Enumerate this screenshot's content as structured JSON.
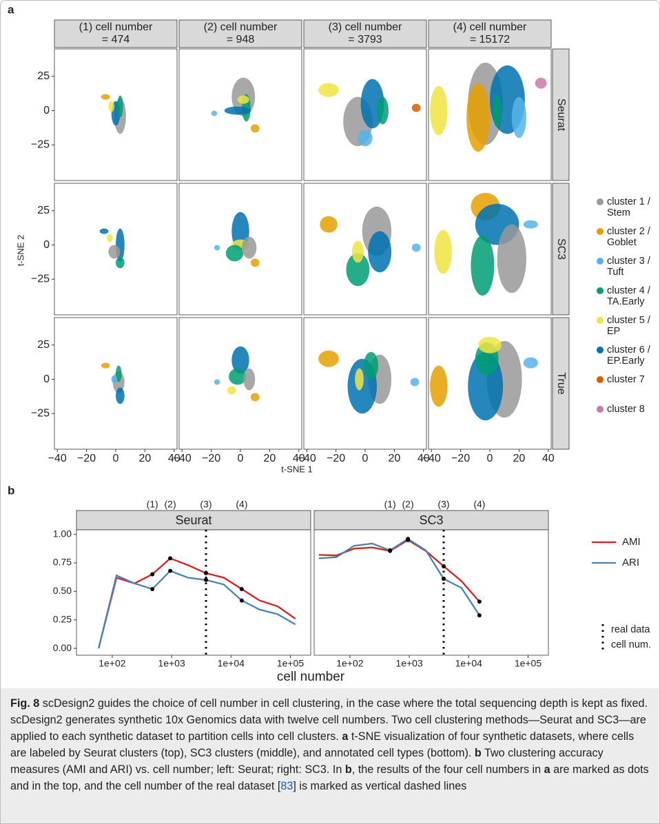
{
  "chart_data": [
    {
      "type": "scatter",
      "panel_label": "a",
      "xlabel": "t-SNE 1",
      "ylabel": "t-SNE 2",
      "xlim": [
        -42,
        42
      ],
      "ylim": [
        -51,
        45
      ],
      "xticks": [
        {
          "value": -40,
          "label": "−40"
        },
        {
          "value": -20,
          "label": "−20"
        },
        0,
        20,
        40
      ],
      "yticks": [
        25,
        0,
        {
          "value": -25,
          "label": "−25"
        }
      ],
      "columns": [
        [
          "(1) cell number",
          "= 474"
        ],
        [
          "(2) cell number",
          "= 948"
        ],
        [
          "(3) cell number",
          "= 3793"
        ],
        [
          "(4) cell number",
          "= 15172"
        ]
      ],
      "rows": [
        "Seurat",
        "SC3",
        "True"
      ],
      "clusters": [
        {
          "name": [
            "cluster 1 /",
            "Stem"
          ],
          "color": "#999999"
        },
        {
          "name": [
            "cluster 2 /",
            "Goblet"
          ],
          "color": "#E69F00"
        },
        {
          "name": [
            "cluster 3 /",
            "Tuft"
          ],
          "color": "#56B4E9"
        },
        {
          "name": [
            "cluster 4 /",
            "TA.Early"
          ],
          "color": "#009E73"
        },
        {
          "name": [
            "cluster 5 /",
            "EP"
          ],
          "color": "#F0E442"
        },
        {
          "name": [
            "cluster 6 /",
            "EP.Early"
          ],
          "color": "#0072B2"
        },
        {
          "name": [
            "cluster 7"
          ],
          "color": "#D55E00"
        },
        {
          "name": [
            "cluster 8"
          ],
          "color": "#CC79A7"
        }
      ],
      "panels": [
        [
          [
            {
              "cluster": 0,
              "x": 3,
              "y": -4,
              "rx": 4,
              "ry": 13
            },
            {
              "cluster": 5,
              "x": 0,
              "y": -2,
              "rx": 3,
              "ry": 9
            },
            {
              "cluster": 3,
              "x": 3,
              "y": 3,
              "rx": 2,
              "ry": 8
            },
            {
              "cluster": 4,
              "x": -3,
              "y": 3,
              "rx": 2,
              "ry": 4
            },
            {
              "cluster": 1,
              "x": -7,
              "y": 10,
              "rx": 3,
              "ry": 2
            }
          ],
          [
            {
              "cluster": 0,
              "x": 2,
              "y": 10,
              "rx": 8,
              "ry": 14
            },
            {
              "cluster": 3,
              "x": 4,
              "y": 2,
              "rx": 3,
              "ry": 10
            },
            {
              "cluster": 5,
              "x": -2,
              "y": 0,
              "rx": 9,
              "ry": 3
            },
            {
              "cluster": 4,
              "x": 2,
              "y": 8,
              "rx": 4,
              "ry": 3
            },
            {
              "cluster": 1,
              "x": 10,
              "y": -13,
              "rx": 3,
              "ry": 3
            },
            {
              "cluster": 2,
              "x": -18,
              "y": -2,
              "rx": 2,
              "ry": 2
            }
          ],
          [
            {
              "cluster": 0,
              "x": -5,
              "y": -8,
              "rx": 10,
              "ry": 18
            },
            {
              "cluster": 5,
              "x": 5,
              "y": 5,
              "rx": 8,
              "ry": 18
            },
            {
              "cluster": 3,
              "x": 12,
              "y": 0,
              "rx": 4,
              "ry": 10
            },
            {
              "cluster": 4,
              "x": -25,
              "y": 15,
              "rx": 7,
              "ry": 5
            },
            {
              "cluster": 6,
              "x": 35,
              "y": 2,
              "rx": 3,
              "ry": 3
            },
            {
              "cluster": 2,
              "x": 0,
              "y": -20,
              "rx": 5,
              "ry": 6
            }
          ],
          [
            {
              "cluster": 0,
              "x": -3,
              "y": 5,
              "rx": 12,
              "ry": 30
            },
            {
              "cluster": 1,
              "x": -8,
              "y": -5,
              "rx": 8,
              "ry": 25
            },
            {
              "cluster": 5,
              "x": 12,
              "y": 8,
              "rx": 12,
              "ry": 25
            },
            {
              "cluster": 2,
              "x": 20,
              "y": -5,
              "rx": 5,
              "ry": 15
            },
            {
              "cluster": 4,
              "x": -35,
              "y": 0,
              "rx": 6,
              "ry": 18
            },
            {
              "cluster": 7,
              "x": 35,
              "y": 20,
              "rx": 4,
              "ry": 4
            },
            {
              "cluster": 3,
              "x": 5,
              "y": 0,
              "rx": 3,
              "ry": 12
            }
          ]
        ],
        [
          [
            {
              "cluster": 5,
              "x": 3,
              "y": 0,
              "rx": 3,
              "ry": 12
            },
            {
              "cluster": 0,
              "x": -1,
              "y": -5,
              "rx": 4,
              "ry": 5
            },
            {
              "cluster": 3,
              "x": 3,
              "y": -13,
              "rx": 3,
              "ry": 4
            },
            {
              "cluster": 4,
              "x": -4,
              "y": 5,
              "rx": 2,
              "ry": 3
            },
            {
              "cluster": 5,
              "x": -8,
              "y": 10,
              "rx": 3,
              "ry": 2
            }
          ],
          [
            {
              "cluster": 5,
              "x": 0,
              "y": 10,
              "rx": 6,
              "ry": 14
            },
            {
              "cluster": 4,
              "x": 0,
              "y": 0,
              "rx": 6,
              "ry": 4
            },
            {
              "cluster": 3,
              "x": -4,
              "y": -6,
              "rx": 6,
              "ry": 6
            },
            {
              "cluster": 0,
              "x": 6,
              "y": -2,
              "rx": 5,
              "ry": 8
            },
            {
              "cluster": 1,
              "x": 10,
              "y": -13,
              "rx": 3,
              "ry": 3
            },
            {
              "cluster": 2,
              "x": -16,
              "y": -2,
              "rx": 2,
              "ry": 2
            }
          ],
          [
            {
              "cluster": 1,
              "x": -25,
              "y": 15,
              "rx": 6,
              "ry": 6
            },
            {
              "cluster": 0,
              "x": 8,
              "y": 10,
              "rx": 10,
              "ry": 18
            },
            {
              "cluster": 5,
              "x": 10,
              "y": -5,
              "rx": 8,
              "ry": 15
            },
            {
              "cluster": 3,
              "x": -5,
              "y": -18,
              "rx": 8,
              "ry": 12
            },
            {
              "cluster": 4,
              "x": -5,
              "y": -5,
              "rx": 4,
              "ry": 8
            },
            {
              "cluster": 2,
              "x": 35,
              "y": -2,
              "rx": 3,
              "ry": 3
            }
          ],
          [
            {
              "cluster": 1,
              "x": -3,
              "y": 28,
              "rx": 10,
              "ry": 10
            },
            {
              "cluster": 5,
              "x": 5,
              "y": 15,
              "rx": 15,
              "ry": 15
            },
            {
              "cluster": 0,
              "x": 15,
              "y": -10,
              "rx": 10,
              "ry": 25
            },
            {
              "cluster": 3,
              "x": -5,
              "y": -15,
              "rx": 8,
              "ry": 22
            },
            {
              "cluster": 4,
              "x": -32,
              "y": -5,
              "rx": 6,
              "ry": 16
            },
            {
              "cluster": 2,
              "x": 28,
              "y": 15,
              "rx": 5,
              "ry": 3
            }
          ]
        ],
        [
          [
            {
              "cluster": 0,
              "x": 2,
              "y": -2,
              "rx": 4,
              "ry": 8
            },
            {
              "cluster": 5,
              "x": 3,
              "y": -12,
              "rx": 3,
              "ry": 6
            },
            {
              "cluster": 3,
              "x": 2,
              "y": 4,
              "rx": 2,
              "ry": 6
            },
            {
              "cluster": 1,
              "x": -7,
              "y": 10,
              "rx": 3,
              "ry": 2
            },
            {
              "cluster": 2,
              "x": -1,
              "y": 0,
              "rx": 2,
              "ry": 3
            }
          ],
          [
            {
              "cluster": 5,
              "x": 0,
              "y": 14,
              "rx": 6,
              "ry": 10
            },
            {
              "cluster": 3,
              "x": -2,
              "y": 2,
              "rx": 6,
              "ry": 6
            },
            {
              "cluster": 0,
              "x": 6,
              "y": 0,
              "rx": 4,
              "ry": 8
            },
            {
              "cluster": 4,
              "x": -6,
              "y": -8,
              "rx": 3,
              "ry": 3
            },
            {
              "cluster": 1,
              "x": 10,
              "y": -13,
              "rx": 3,
              "ry": 3
            },
            {
              "cluster": 2,
              "x": -16,
              "y": -2,
              "rx": 2,
              "ry": 2
            }
          ],
          [
            {
              "cluster": 1,
              "x": -25,
              "y": 15,
              "rx": 7,
              "ry": 6
            },
            {
              "cluster": 0,
              "x": 10,
              "y": 0,
              "rx": 8,
              "ry": 18
            },
            {
              "cluster": 5,
              "x": -2,
              "y": -5,
              "rx": 10,
              "ry": 20
            },
            {
              "cluster": 3,
              "x": 4,
              "y": 10,
              "rx": 5,
              "ry": 10
            },
            {
              "cluster": 4,
              "x": -4,
              "y": 0,
              "rx": 3,
              "ry": 8
            },
            {
              "cluster": 2,
              "x": 34,
              "y": -2,
              "rx": 3,
              "ry": 3
            }
          ],
          [
            {
              "cluster": 1,
              "x": -35,
              "y": -5,
              "rx": 6,
              "ry": 15
            },
            {
              "cluster": 0,
              "x": 10,
              "y": 0,
              "rx": 12,
              "ry": 28
            },
            {
              "cluster": 5,
              "x": -3,
              "y": -5,
              "rx": 12,
              "ry": 25
            },
            {
              "cluster": 3,
              "x": -2,
              "y": 15,
              "rx": 8,
              "ry": 12
            },
            {
              "cluster": 4,
              "x": 0,
              "y": 25,
              "rx": 8,
              "ry": 6
            },
            {
              "cluster": 2,
              "x": 28,
              "y": 12,
              "rx": 5,
              "ry": 4
            }
          ]
        ]
      ]
    },
    {
      "type": "line",
      "panel_label": "b",
      "xlabel": "cell number",
      "log_x": true,
      "xlim": [
        25,
        220000
      ],
      "ylim": [
        -0.06,
        1.04
      ],
      "xticks": [
        {
          "value": 100,
          "label": "1e+02"
        },
        {
          "value": 1000,
          "label": "1e+03"
        },
        {
          "value": 10000,
          "label": "1e+04"
        },
        {
          "value": 100000,
          "label": "1e+05"
        }
      ],
      "yticks": [
        {
          "value": 0,
          "label": "0.00"
        },
        {
          "value": 0.25,
          "label": "0.25"
        },
        {
          "value": 0.5,
          "label": "0.50"
        },
        {
          "value": 0.75,
          "label": "0.75"
        },
        {
          "value": 1,
          "label": "1.00"
        }
      ],
      "markers": [
        {
          "value": 474,
          "label": "(1)"
        },
        {
          "value": 948,
          "label": "(2)"
        },
        {
          "value": 3793,
          "label": "(3)"
        },
        {
          "value": 15172,
          "label": "(4)"
        }
      ],
      "real_data": {
        "x": 3793,
        "label": [
          "real data",
          "cell num."
        ]
      },
      "facets": [
        {
          "title": "Seurat",
          "x": [
            59,
            118,
            237,
            474,
            948,
            1896,
            3793,
            7586,
            15172,
            30344,
            60688,
            121376
          ],
          "series": [
            {
              "name": "AMI",
              "color": "#d62020",
              "values": [
                0.0,
                0.62,
                0.57,
                0.65,
                0.79,
                0.73,
                0.66,
                0.62,
                0.52,
                0.42,
                0.37,
                0.26
              ]
            },
            {
              "name": "ARI",
              "color": "#4682b4",
              "values": [
                0.0,
                0.64,
                0.57,
                0.52,
                0.68,
                0.62,
                0.6,
                0.56,
                0.42,
                0.34,
                0.3,
                0.21
              ]
            }
          ]
        },
        {
          "title": "SC3",
          "x": [
            30,
            59,
            118,
            237,
            474,
            948,
            1896,
            3793,
            7586,
            15172
          ],
          "series": [
            {
              "name": "AMI",
              "color": "#d62020",
              "values": [
                0.82,
                0.815,
                0.875,
                0.885,
                0.855,
                0.95,
                0.855,
                0.72,
                0.59,
                0.41
              ]
            },
            {
              "name": "ARI",
              "color": "#4682b4",
              "values": [
                0.79,
                0.8,
                0.9,
                0.92,
                0.86,
                0.96,
                0.86,
                0.61,
                0.53,
                0.29
              ]
            }
          ]
        }
      ]
    }
  ],
  "caption": [
    {
      "text": "Fig. 8",
      "style": "bold"
    },
    {
      "text": "  scDesign2 guides the choice of cell number in cell clustering, in the case where the total sequencing depth is kept as fixed. scDesign2 generates synthetic 10x Genomics data with twelve cell numbers. Two cell clustering methods—Seurat and SC3—are applied to each synthetic dataset to partition cells into cell clusters. "
    },
    {
      "text": "a",
      "style": "bold"
    },
    {
      "text": " t-SNE visualization of four synthetic datasets, where cells are labeled by Seurat clusters (top), SC3 clusters (middle), and annotated cell types (bottom). "
    },
    {
      "text": "b",
      "style": "bold"
    },
    {
      "text": " Two clustering accuracy measures (AMI and ARI) vs. cell number; left: Seurat; right: SC3. In "
    },
    {
      "text": "b",
      "style": "bold"
    },
    {
      "text": ", the results of the four cell numbers in "
    },
    {
      "text": "a",
      "style": "bold"
    },
    {
      "text": " are marked as dots and in the top, and the cell number of the real dataset ["
    },
    {
      "text": "83",
      "style": "link"
    },
    {
      "text": "] is marked as vertical dashed lines"
    }
  ]
}
